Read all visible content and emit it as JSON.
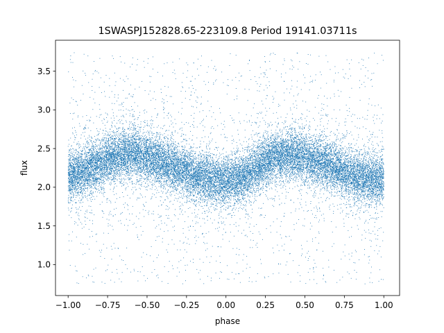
{
  "chart_data": {
    "type": "scatter",
    "title": "1SWASPJ152828.65-223109.8 Period 19141.03711s",
    "xlabel": "phase",
    "ylabel": "flux",
    "xlim": [
      -1.08,
      1.1
    ],
    "ylim": [
      0.6,
      3.9
    ],
    "x_ticks": [
      -1.0,
      -0.75,
      -0.5,
      -0.25,
      0.0,
      0.25,
      0.5,
      0.75,
      1.0
    ],
    "x_tick_labels": [
      "−1.00",
      "−0.75",
      "−0.50",
      "−0.25",
      "0.00",
      "0.25",
      "0.50",
      "0.75",
      "1.00"
    ],
    "y_ticks": [
      1.0,
      1.5,
      2.0,
      2.5,
      3.0,
      3.5
    ],
    "y_tick_labels": [
      "1.0",
      "1.5",
      "2.0",
      "2.5",
      "3.0",
      "3.5"
    ],
    "grid": false,
    "legend": "none",
    "marker_color": "#1f77b4",
    "series": [
      {
        "phase_range": [
          -1.0,
          1.0
        ],
        "points_shown": 22000,
        "profile_phase": [
          -1.0,
          -0.9,
          -0.8,
          -0.7,
          -0.6,
          -0.5,
          -0.4,
          -0.3,
          -0.2,
          -0.1,
          0.0,
          0.1,
          0.2,
          0.3,
          0.4,
          0.5,
          0.6,
          0.7,
          0.8,
          0.9,
          1.0
        ],
        "profile_flux": [
          2.15,
          2.2,
          2.3,
          2.42,
          2.45,
          2.38,
          2.32,
          2.25,
          2.15,
          2.1,
          2.08,
          2.12,
          2.25,
          2.4,
          2.42,
          2.38,
          2.32,
          2.25,
          2.15,
          2.1,
          2.1
        ],
        "core_spread": 0.15,
        "outlier_range": [
          0.75,
          3.75
        ]
      }
    ]
  }
}
